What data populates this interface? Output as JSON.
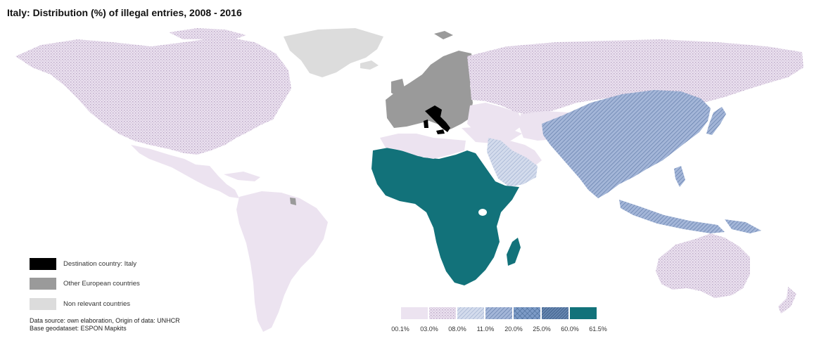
{
  "title": "Italy: Distribution (%) of illegal entries, 2008 - 2016",
  "legend": {
    "items": [
      {
        "label": "Destination country: Italy",
        "color": "#000000"
      },
      {
        "label": "Other European countries",
        "color": "#9a9a9a"
      },
      {
        "label": "Non relevant countries",
        "color": "#dcdcdc"
      }
    ]
  },
  "source": {
    "line1": "Data source: own elaboration, Origin of data: UNHCR",
    "line2": "Base geodataset: ESPON Mapkits"
  },
  "scale": {
    "labels": [
      "00.1%",
      "03.0%",
      "08.0%",
      "11.0%",
      "20.0%",
      "25.0%",
      "60.0%",
      "61.5%"
    ],
    "classes": [
      {
        "pattern": "solid-light",
        "color": "#ece3f0"
      },
      {
        "pattern": "dotted",
        "color": "#e3d8ea"
      },
      {
        "pattern": "hatch-fine",
        "color": "#b8c3dc"
      },
      {
        "pattern": "hatch",
        "color": "#93a8cc"
      },
      {
        "pattern": "crosshatch",
        "color": "#6f8dbd"
      },
      {
        "pattern": "hatch-dense",
        "color": "#55779f"
      },
      {
        "pattern": "solid-dark",
        "color": "#12727a"
      }
    ]
  },
  "colors": {
    "italy": "#000000",
    "europe": "#9a9a9a",
    "non_relevant": "#dcdcdc",
    "africa": "#12727a",
    "asia": "#8fa5cc",
    "arabia": "#a9b8d8",
    "light": "#ece3f0",
    "dotted": "#e3d8ea"
  }
}
